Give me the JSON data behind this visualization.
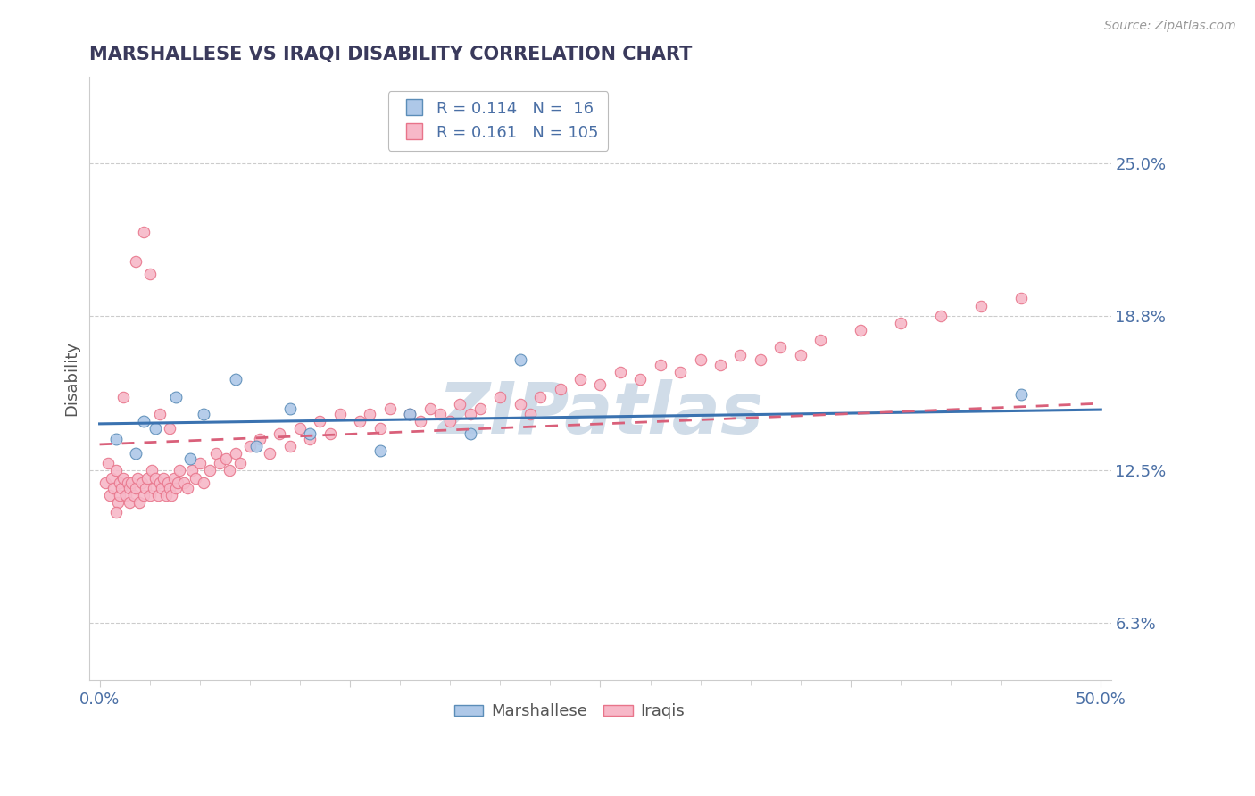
{
  "title": "MARSHALLESE VS IRAQI DISABILITY CORRELATION CHART",
  "source": "Source: ZipAtlas.com",
  "ylabel": "Disability",
  "xmin": 0.0,
  "xmax": 0.5,
  "ymin": 0.04,
  "ymax": 0.285,
  "yticks": [
    0.063,
    0.125,
    0.188,
    0.25
  ],
  "ytick_labels": [
    "6.3%",
    "12.5%",
    "18.8%",
    "25.0%"
  ],
  "xtick_major": [
    0.0,
    0.5
  ],
  "xtick_major_labels": [
    "0.0%",
    "50.0%"
  ],
  "marshallese_color": "#aec8e8",
  "marshallese_edge_color": "#5b8db8",
  "iraqis_color": "#f7b8c8",
  "iraqis_edge_color": "#e8748a",
  "marshallese_line_color": "#3a72b0",
  "iraqis_line_color": "#d9607a",
  "R_marshallese": 0.114,
  "N_marshallese": 16,
  "R_iraqis": 0.161,
  "N_iraqis": 105,
  "title_color": "#3a3a5c",
  "axis_label_color": "#4a6fa5",
  "tick_label_color": "#4a6fa5",
  "bottom_label_color": "#555555",
  "watermark_color": "#d0dce8",
  "background_color": "#ffffff",
  "grid_color": "#cccccc",
  "spine_color": "#cccccc",
  "marshallese_x": [
    0.008,
    0.018,
    0.022,
    0.028,
    0.038,
    0.045,
    0.052,
    0.068,
    0.078,
    0.095,
    0.105,
    0.14,
    0.155,
    0.185,
    0.21,
    0.46
  ],
  "marshallese_y": [
    0.138,
    0.132,
    0.145,
    0.142,
    0.155,
    0.13,
    0.148,
    0.162,
    0.135,
    0.15,
    0.14,
    0.133,
    0.148,
    0.14,
    0.17,
    0.156
  ],
  "iraqis_x": [
    0.003,
    0.004,
    0.005,
    0.006,
    0.007,
    0.008,
    0.009,
    0.01,
    0.01,
    0.011,
    0.012,
    0.013,
    0.014,
    0.015,
    0.015,
    0.016,
    0.017,
    0.018,
    0.019,
    0.02,
    0.021,
    0.022,
    0.023,
    0.024,
    0.025,
    0.026,
    0.027,
    0.028,
    0.029,
    0.03,
    0.031,
    0.032,
    0.033,
    0.034,
    0.035,
    0.036,
    0.037,
    0.038,
    0.039,
    0.04,
    0.042,
    0.044,
    0.046,
    0.048,
    0.05,
    0.052,
    0.055,
    0.058,
    0.06,
    0.063,
    0.065,
    0.068,
    0.07,
    0.075,
    0.08,
    0.085,
    0.09,
    0.095,
    0.1,
    0.105,
    0.11,
    0.115,
    0.12,
    0.13,
    0.135,
    0.14,
    0.145,
    0.155,
    0.16,
    0.165,
    0.17,
    0.175,
    0.18,
    0.185,
    0.19,
    0.2,
    0.21,
    0.215,
    0.22,
    0.23,
    0.24,
    0.25,
    0.26,
    0.27,
    0.28,
    0.29,
    0.3,
    0.31,
    0.32,
    0.33,
    0.34,
    0.35,
    0.36,
    0.38,
    0.4,
    0.42,
    0.44,
    0.46,
    0.025,
    0.03,
    0.035,
    0.018,
    0.022,
    0.012,
    0.008
  ],
  "iraqis_y": [
    0.12,
    0.128,
    0.115,
    0.122,
    0.118,
    0.125,
    0.112,
    0.12,
    0.115,
    0.118,
    0.122,
    0.115,
    0.12,
    0.118,
    0.112,
    0.12,
    0.115,
    0.118,
    0.122,
    0.112,
    0.12,
    0.115,
    0.118,
    0.122,
    0.115,
    0.125,
    0.118,
    0.122,
    0.115,
    0.12,
    0.118,
    0.122,
    0.115,
    0.12,
    0.118,
    0.115,
    0.122,
    0.118,
    0.12,
    0.125,
    0.12,
    0.118,
    0.125,
    0.122,
    0.128,
    0.12,
    0.125,
    0.132,
    0.128,
    0.13,
    0.125,
    0.132,
    0.128,
    0.135,
    0.138,
    0.132,
    0.14,
    0.135,
    0.142,
    0.138,
    0.145,
    0.14,
    0.148,
    0.145,
    0.148,
    0.142,
    0.15,
    0.148,
    0.145,
    0.15,
    0.148,
    0.145,
    0.152,
    0.148,
    0.15,
    0.155,
    0.152,
    0.148,
    0.155,
    0.158,
    0.162,
    0.16,
    0.165,
    0.162,
    0.168,
    0.165,
    0.17,
    0.168,
    0.172,
    0.17,
    0.175,
    0.172,
    0.178,
    0.182,
    0.185,
    0.188,
    0.192,
    0.195,
    0.205,
    0.148,
    0.142,
    0.21,
    0.222,
    0.155,
    0.108
  ]
}
